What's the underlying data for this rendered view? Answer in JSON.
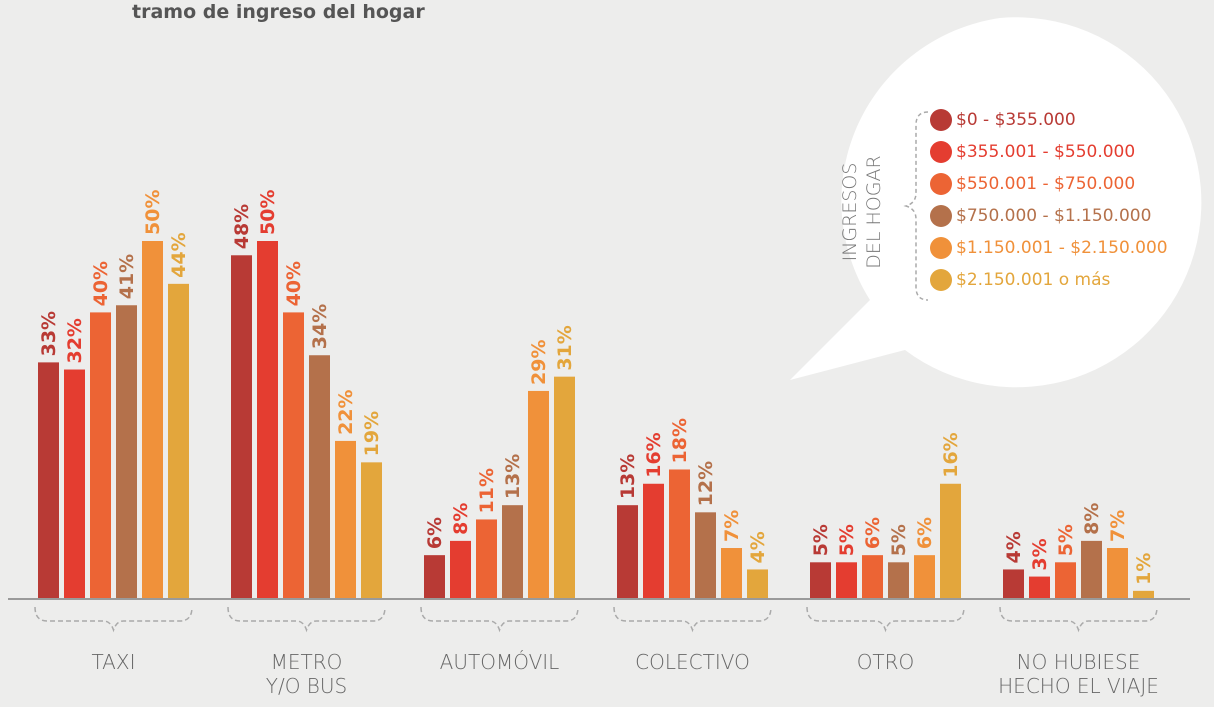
{
  "chart_data": {
    "type": "bar",
    "title": "tramo de ingreso del hogar",
    "legend_title": "INGRESOS\nDEL HOGAR",
    "categories": [
      "TAXI",
      "METRO\nY/O BUS",
      "AUTOMÓVIL",
      "COLECTIVO",
      "OTRO",
      "NO HUBIESE\nHECHO EL VIAJE"
    ],
    "series": [
      {
        "name": "$0 - $355.000",
        "color": "#b83a35",
        "values": [
          33,
          48,
          6,
          13,
          5,
          4
        ],
        "value_labels": [
          "33%",
          "48%",
          "6%",
          "13%",
          "5%",
          "4%"
        ]
      },
      {
        "name": "$355.001 - $550.000",
        "color": "#e43d30",
        "values": [
          32,
          50,
          8,
          16,
          5,
          3
        ],
        "value_labels": [
          "32%",
          "50%",
          "8%",
          "16%",
          "5%",
          "3%"
        ]
      },
      {
        "name": "$550.001 - $750.000",
        "color": "#ec6434",
        "values": [
          40,
          40,
          11,
          18,
          6,
          5
        ],
        "value_labels": [
          "40%",
          "40%",
          "11%",
          "18%",
          "6%",
          "5%"
        ]
      },
      {
        "name": "$750.000 - $1.150.000",
        "color": "#b4714b",
        "values": [
          41,
          34,
          13,
          12,
          5,
          8
        ],
        "value_labels": [
          "41%",
          "34%",
          "13%",
          "12%",
          "5%",
          "8%"
        ]
      },
      {
        "name": "$1.150.001 - $2.150.000",
        "color": "#f0913a",
        "values": [
          50,
          22,
          29,
          7,
          6,
          7
        ],
        "value_labels": [
          "50%",
          "22%",
          "29%",
          "7%",
          "6%",
          "7%"
        ]
      },
      {
        "name": "$2.150.001 o más",
        "color": "#e3a63c",
        "values": [
          44,
          19,
          31,
          4,
          16,
          1
        ],
        "value_labels": [
          "44%",
          "19%",
          "31%",
          "4%",
          "16%",
          "1%"
        ]
      }
    ]
  }
}
